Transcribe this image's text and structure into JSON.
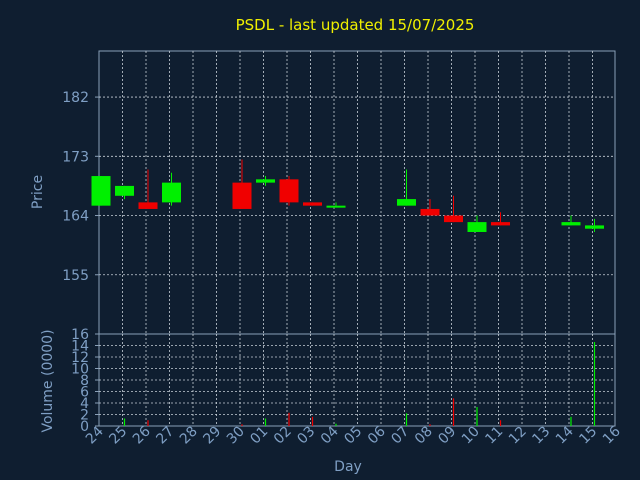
{
  "chart_data": {
    "type": "candlestick",
    "title": "PSDL - last updated 15/07/2025",
    "xlabel": "Day",
    "price": {
      "ylabel": "Price",
      "yticks": [
        155,
        164,
        173,
        182
      ],
      "ylim": [
        146.0,
        189.0
      ],
      "grid": true
    },
    "volume": {
      "ylabel": "Volume (0000)",
      "yticks": [
        0,
        2,
        4,
        6,
        8,
        10,
        12,
        14,
        16
      ],
      "ylim": [
        0,
        16
      ],
      "grid": true
    },
    "x_labels": [
      "24",
      "25",
      "26",
      "27",
      "28",
      "29",
      "30",
      "01",
      "02",
      "03",
      "04",
      "05",
      "06",
      "07",
      "08",
      "09",
      "10",
      "11",
      "12",
      "13",
      "14",
      "15",
      "16"
    ],
    "candles": [
      {
        "x": 0,
        "open": 165.5,
        "high": 170.0,
        "low": 165.5,
        "close": 170.0
      },
      {
        "x": 1,
        "open": 167.0,
        "high": 168.5,
        "low": 166.5,
        "close": 168.5
      },
      {
        "x": 2,
        "open": 166.0,
        "high": 171.0,
        "low": 165.0,
        "close": 165.0
      },
      {
        "x": 3,
        "open": 166.0,
        "high": 170.5,
        "low": 165.5,
        "close": 169.0
      },
      {
        "x": 6,
        "open": 169.0,
        "high": 172.5,
        "low": 165.0,
        "close": 165.0
      },
      {
        "x": 7,
        "open": 169.0,
        "high": 170.0,
        "low": 168.5,
        "close": 169.5
      },
      {
        "x": 8,
        "open": 169.5,
        "high": 170.0,
        "low": 165.5,
        "close": 166.0
      },
      {
        "x": 9,
        "open": 166.0,
        "high": 166.0,
        "low": 165.5,
        "close": 165.5
      },
      {
        "x": 10,
        "open": 165.5,
        "high": 166.0,
        "low": 165.5,
        "close": 165.5
      },
      {
        "x": 13,
        "open": 165.5,
        "high": 171.0,
        "low": 165.5,
        "close": 166.5
      },
      {
        "x": 14,
        "open": 165.0,
        "high": 166.5,
        "low": 164.0,
        "close": 164.0
      },
      {
        "x": 15,
        "open": 164.0,
        "high": 167.0,
        "low": 163.0,
        "close": 163.0
      },
      {
        "x": 16,
        "open": 161.5,
        "high": 164.0,
        "low": 161.5,
        "close": 163.0
      },
      {
        "x": 17,
        "open": 163.0,
        "high": 164.5,
        "low": 162.5,
        "close": 162.5
      },
      {
        "x": 20,
        "open": 162.5,
        "high": 164.0,
        "low": 162.5,
        "close": 163.0
      },
      {
        "x": 21,
        "open": 162.0,
        "high": 163.5,
        "low": 161.5,
        "close": 162.5
      }
    ],
    "volumes": [
      {
        "x": 1,
        "value": 1.3,
        "dir": "up"
      },
      {
        "x": 2,
        "value": 1.0,
        "dir": "down"
      },
      {
        "x": 6,
        "value": 0.3,
        "dir": "down"
      },
      {
        "x": 7,
        "value": 1.3,
        "dir": "up"
      },
      {
        "x": 8,
        "value": 2.3,
        "dir": "down"
      },
      {
        "x": 9,
        "value": 1.6,
        "dir": "down"
      },
      {
        "x": 10,
        "value": 0.4,
        "dir": "up"
      },
      {
        "x": 13,
        "value": 2.2,
        "dir": "up"
      },
      {
        "x": 14,
        "value": 0.3,
        "dir": "down"
      },
      {
        "x": 15,
        "value": 4.8,
        "dir": "down"
      },
      {
        "x": 16,
        "value": 3.3,
        "dir": "up"
      },
      {
        "x": 17,
        "value": 1.0,
        "dir": "down"
      },
      {
        "x": 20,
        "value": 1.6,
        "dir": "up"
      },
      {
        "x": 21,
        "value": 14.6,
        "dir": "up"
      }
    ],
    "colors": {
      "background": "#0f1e30",
      "grid": "#c8d0d8",
      "axis": "#8aa0b8",
      "text": "#7f9fc4",
      "title": "#f0f000",
      "up": "#00f000",
      "down": "#f00000"
    }
  }
}
